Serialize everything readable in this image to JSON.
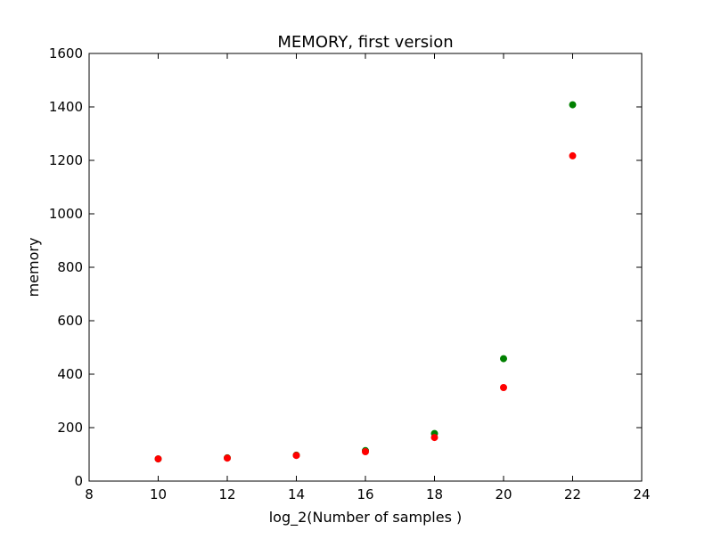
{
  "chart_data": {
    "type": "scatter",
    "title": "MEMORY, first version",
    "xlabel": "log_2(Number of samples )",
    "ylabel": "memory",
    "xlim": [
      8,
      24
    ],
    "ylim": [
      0,
      1600
    ],
    "xticks": [
      8,
      10,
      12,
      14,
      16,
      18,
      20,
      22,
      24
    ],
    "yticks": [
      0,
      200,
      400,
      600,
      800,
      1000,
      1200,
      1400,
      1600
    ],
    "grid": false,
    "x": [
      10,
      12,
      14,
      16,
      18,
      20,
      22
    ],
    "series": [
      {
        "color": "#008000",
        "values": [
          83,
          87,
          97,
          114,
          178,
          458,
          1408
        ]
      },
      {
        "color": "#ff0000",
        "values": [
          83,
          86,
          96,
          110,
          163,
          350,
          1217
        ]
      }
    ]
  }
}
